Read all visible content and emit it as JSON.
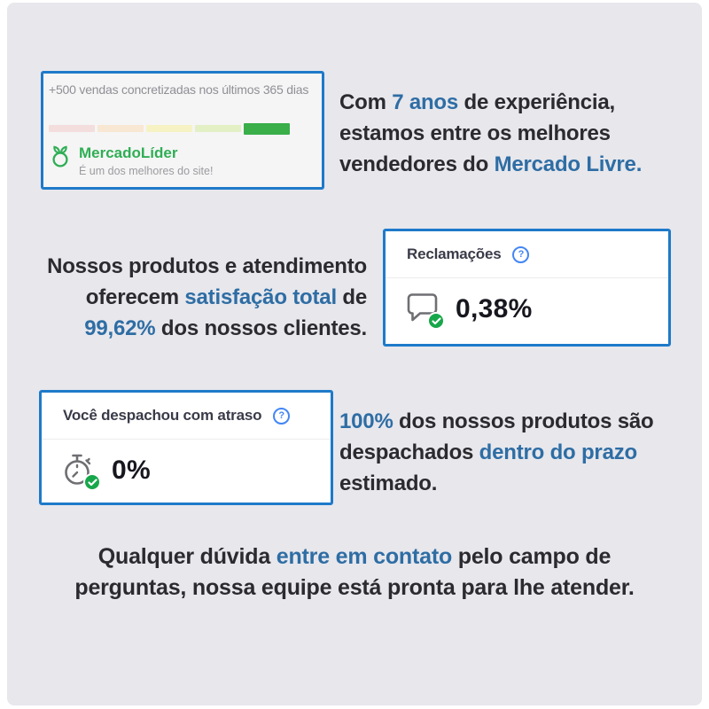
{
  "palette": {
    "page_bg": "#e7e7ec",
    "card_border": "#1e7ac9",
    "accent_blue": "#2e6da4",
    "help_blue": "#4286f5",
    "badge_green": "#17a74a",
    "leader_green": "#2fae55",
    "icon_gray": "#6f6f73"
  },
  "reputation_card": {
    "title": "+500 vendas concretizadas nos últimos 365 dias",
    "levels": [
      "#f3dedd",
      "#f8e7d2",
      "#f7f2c3",
      "#e3efc4",
      "#39ae49"
    ],
    "active_level": 4,
    "badge_name": "MercadoLíder",
    "badge_subtitle": "É um dos melhores do site!"
  },
  "experience_paragraph": {
    "l1_pre": "Com ",
    "l1_hl": "7 anos",
    "l1_post": " de experiência,",
    "l2": "estamos entre os melhores",
    "l3_pre": "vendedores do ",
    "l3_hl": "Mercado Livre."
  },
  "satisfaction_paragraph": {
    "l1": "Nossos produtos e atendimento",
    "l2_pre": "oferecem ",
    "l2_hl": "satisfação total",
    "l2_post": " de",
    "l3_hl": "99,62%",
    "l3_post": " dos nossos clientes."
  },
  "claims_card": {
    "header": "Reclamações",
    "help_glyph": "?",
    "value": "0,38%",
    "icon": "chat-bubble-check-icon"
  },
  "dispatch_card": {
    "header": "Você despachou com atraso",
    "help_glyph": "?",
    "value": "0%",
    "icon": "stopwatch-check-icon"
  },
  "dispatch_paragraph": {
    "l1_hl": "100%",
    "l1_post": " dos nossos produtos são",
    "l2_pre": "despachados ",
    "l2_hl": "dentro do prazo",
    "l3": "estimado."
  },
  "contact_paragraph": {
    "l1_pre": "Qualquer dúvida ",
    "l1_hl": "entre em contato",
    "l1_post": " pelo campo de",
    "l2": "perguntas, nossa equipe está pronta para lhe atender."
  }
}
